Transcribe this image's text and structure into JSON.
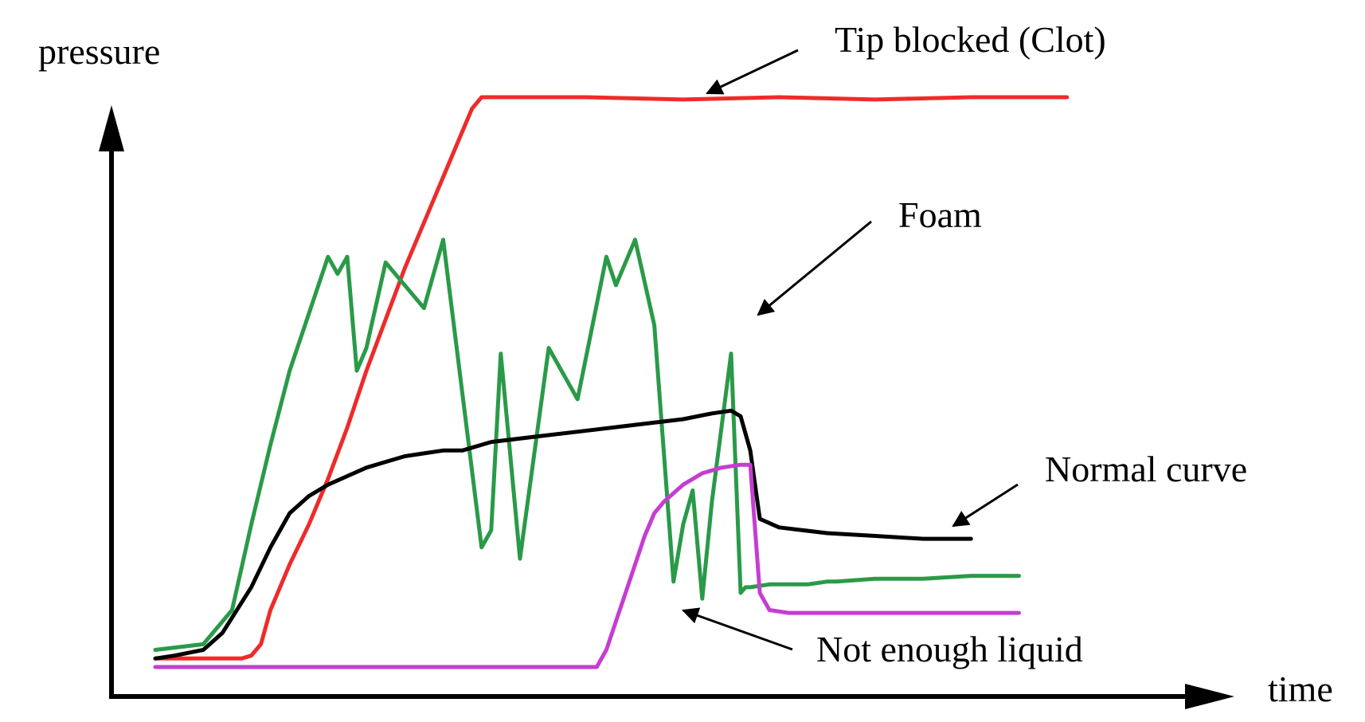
{
  "chart_data": {
    "type": "line",
    "xlabel": "time",
    "ylabel": "pressure",
    "xlim": [
      0,
      100
    ],
    "ylim": [
      0,
      100
    ],
    "grid": false,
    "series": [
      {
        "name": "Tip blocked (Clot)",
        "color": "#ee2b2b",
        "x": [
          0,
          9,
          10,
          11,
          12,
          14,
          16,
          18,
          20,
          22,
          24,
          26,
          28,
          30,
          32,
          33,
          34,
          35,
          45,
          55,
          65,
          75,
          85,
          95
        ],
        "y": [
          1.5,
          1.5,
          2,
          4,
          10,
          18,
          25,
          33,
          42,
          52,
          61,
          70,
          78,
          86,
          94,
          98,
          100,
          100,
          100,
          99.6,
          100,
          99.6,
          100,
          100
        ]
      },
      {
        "name": "Foam",
        "color": "#2a9a48",
        "x": [
          0,
          5,
          8,
          10,
          12,
          14,
          16,
          18,
          19,
          20,
          21,
          22,
          24,
          28,
          30,
          34,
          35,
          36,
          38,
          41,
          44,
          47,
          48,
          50,
          52,
          54,
          55,
          56,
          57,
          58,
          60,
          61,
          61.5,
          62,
          64,
          65,
          68,
          70,
          70.5,
          71,
          75,
          80,
          85,
          90
        ],
        "y": [
          3,
          4,
          10,
          25,
          39,
          52,
          62,
          72,
          69,
          72,
          52,
          56,
          71,
          63,
          75,
          21,
          24,
          55,
          19,
          56,
          47,
          72,
          67,
          75,
          60,
          15,
          25,
          31,
          12,
          29,
          55,
          13,
          14,
          14,
          14.5,
          14.5,
          14.5,
          15,
          15,
          15,
          15.5,
          15.5,
          16,
          16
        ]
      },
      {
        "name": "Normal curve",
        "color": "#000000",
        "x": [
          0,
          2,
          5,
          7,
          10,
          12,
          14,
          16,
          18,
          20,
          22,
          24,
          26,
          28,
          30,
          32,
          35,
          40,
          45,
          50,
          55,
          58,
          60,
          61,
          62,
          63,
          65,
          70,
          75,
          80,
          83,
          85
        ],
        "y": [
          1.5,
          2,
          3,
          6,
          14,
          21,
          27,
          30,
          32,
          33.5,
          35,
          36,
          37,
          37.5,
          38,
          38,
          39.5,
          40.5,
          41.5,
          42.5,
          43.5,
          44.5,
          45,
          44,
          38,
          26,
          24.5,
          23.5,
          23,
          22.5,
          22.5,
          22.5
        ]
      },
      {
        "name": "Not enough liquid",
        "color": "#c53dd1",
        "x": [
          0,
          10,
          20,
          30,
          40,
          45,
          46,
          47,
          48,
          49,
          50,
          51,
          52,
          53,
          55,
          57,
          59,
          61,
          62,
          63,
          64,
          66,
          70,
          75,
          85,
          90
        ],
        "y": [
          0,
          0,
          0,
          0,
          0,
          0,
          0,
          3,
          8,
          13,
          18,
          23,
          27,
          29,
          32,
          34,
          35,
          35.5,
          35.5,
          13,
          10,
          9.5,
          9.5,
          9.5,
          9.5,
          9.5
        ]
      }
    ],
    "annotations": [
      {
        "text": "Tip blocked (Clot)",
        "series": 0
      },
      {
        "text": "Foam",
        "series": 1
      },
      {
        "text": "Normal curve",
        "series": 2
      },
      {
        "text": "Not enough liquid",
        "series": 3
      }
    ]
  }
}
